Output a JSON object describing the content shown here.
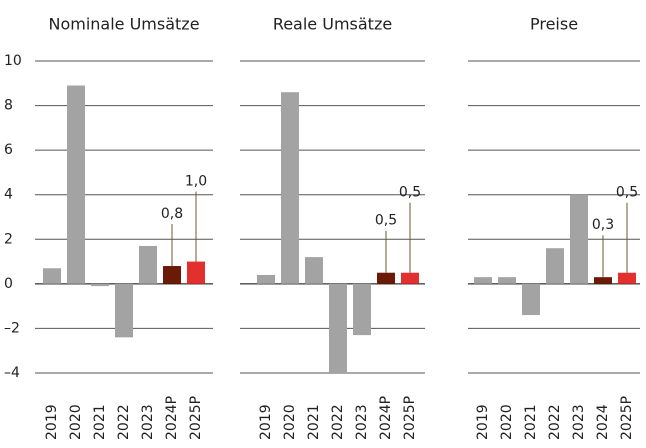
{
  "chart_data": [
    {
      "type": "bar",
      "title": "Nominale Umsätze",
      "categories": [
        "2019",
        "2020",
        "2021",
        "2022",
        "2023",
        "2024P",
        "2025P"
      ],
      "values": [
        0.7,
        8.9,
        -0.1,
        -2.4,
        1.7,
        0.8,
        1.0
      ],
      "value_labels": [
        null,
        null,
        null,
        null,
        null,
        "0,8",
        "1,0"
      ],
      "colors": [
        "#a3a3a3",
        "#a3a3a3",
        "#a3a3a3",
        "#a3a3a3",
        "#a3a3a3",
        "#6b1a08",
        "#e2302e"
      ],
      "ylim": [
        -4,
        10
      ],
      "yticks": [
        {
          "value": -4,
          "label": "–4"
        },
        {
          "value": -2,
          "label": "–2"
        },
        0,
        2,
        4,
        6,
        8,
        10
      ],
      "grid": true
    },
    {
      "type": "bar",
      "title": "Reale Umsätze",
      "categories": [
        "2019",
        "2020",
        "2021",
        "2022",
        "2023",
        "2024P",
        "2025P"
      ],
      "values": [
        0.4,
        8.6,
        1.2,
        -4.0,
        -2.3,
        0.5,
        0.5
      ],
      "value_labels": [
        null,
        null,
        null,
        null,
        null,
        "0,5",
        "0,5"
      ],
      "colors": [
        "#a3a3a3",
        "#a3a3a3",
        "#a3a3a3",
        "#a3a3a3",
        "#a3a3a3",
        "#6b1a08",
        "#e2302e"
      ],
      "ylim": [
        -4,
        10
      ],
      "yticks": [
        -4,
        -2,
        0,
        2,
        4,
        6,
        8,
        10
      ],
      "grid": true
    },
    {
      "type": "bar",
      "title": "Preise",
      "categories": [
        "2019",
        "2020",
        "2021",
        "2022",
        "2023",
        "2024",
        "2025P"
      ],
      "values": [
        0.3,
        0.3,
        -1.4,
        1.6,
        4.0,
        0.3,
        0.5
      ],
      "value_labels": [
        null,
        null,
        null,
        null,
        null,
        "0,3",
        "0,5"
      ],
      "colors": [
        "#a3a3a3",
        "#a3a3a3",
        "#a3a3a3",
        "#a3a3a3",
        "#a3a3a3",
        "#6b1a08",
        "#e2302e"
      ],
      "ylim": [
        -4,
        10
      ],
      "yticks": [
        -4,
        -2,
        0,
        2,
        4,
        6,
        8,
        10
      ],
      "grid": true
    }
  ]
}
